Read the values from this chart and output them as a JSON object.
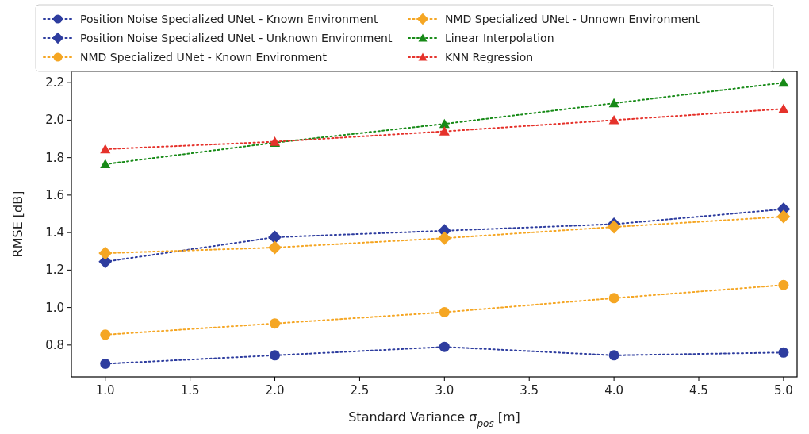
{
  "chart_data": {
    "type": "line",
    "xlabel": "Standard Variance σ$_{pos}$ [m]",
    "ylabel": "RMSE [dB]",
    "x": [
      1,
      2,
      3,
      4,
      5
    ],
    "series": [
      {
        "name": "Position Noise Specialized UNet - Known Environment",
        "color": "#2e3d9f",
        "marker": "circle",
        "values": [
          0.7,
          0.745,
          0.79,
          0.745,
          0.76
        ]
      },
      {
        "name": "Position Noise Specialized UNet - Unknown Environment",
        "color": "#2e3d9f",
        "marker": "diamond",
        "values": [
          1.245,
          1.375,
          1.41,
          1.445,
          1.525
        ]
      },
      {
        "name": "NMD Specialized UNet - Known Environment",
        "color": "#f5a623",
        "marker": "circle",
        "values": [
          0.855,
          0.915,
          0.975,
          1.05,
          1.12
        ]
      },
      {
        "name": "NMD Specialized UNet - Unnown Environment",
        "color": "#f5a623",
        "marker": "diamond",
        "values": [
          1.29,
          1.32,
          1.37,
          1.43,
          1.485
        ]
      },
      {
        "name": "Linear Interpolation",
        "color": "#178a17",
        "marker": "triangle",
        "values": [
          1.765,
          1.88,
          1.98,
          2.09,
          2.2
        ]
      },
      {
        "name": "KNN Regression",
        "color": "#e5322b",
        "marker": "triangle",
        "values": [
          1.845,
          1.885,
          1.94,
          2.0,
          2.06
        ]
      }
    ],
    "line_style": "dotted",
    "xlim": [
      0.8,
      5.08
    ],
    "ylim": [
      0.63,
      2.26
    ],
    "xticks": [
      {
        "value": 1,
        "label": "1.0"
      },
      {
        "value": 1.5,
        "label": "1.5"
      },
      {
        "value": 2,
        "label": "2.0"
      },
      {
        "value": 2.5,
        "label": "2.5"
      },
      {
        "value": 3,
        "label": "3.0"
      },
      {
        "value": 3.5,
        "label": "3.5"
      },
      {
        "value": 4,
        "label": "4.0"
      },
      {
        "value": 4.5,
        "label": "4.5"
      },
      {
        "value": 5,
        "label": "5.0"
      }
    ],
    "yticks": [
      {
        "value": 0.8,
        "label": "0.8"
      },
      {
        "value": 1,
        "label": "1.0"
      },
      {
        "value": 1.2,
        "label": "1.2"
      },
      {
        "value": 1.4,
        "label": "1.4"
      },
      {
        "value": 1.6,
        "label": "1.6"
      },
      {
        "value": 1.8,
        "label": "1.8"
      },
      {
        "value": 2,
        "label": "2.0"
      },
      {
        "value": 2.2,
        "label": "2.2"
      }
    ],
    "grid": false,
    "legend": "top"
  }
}
